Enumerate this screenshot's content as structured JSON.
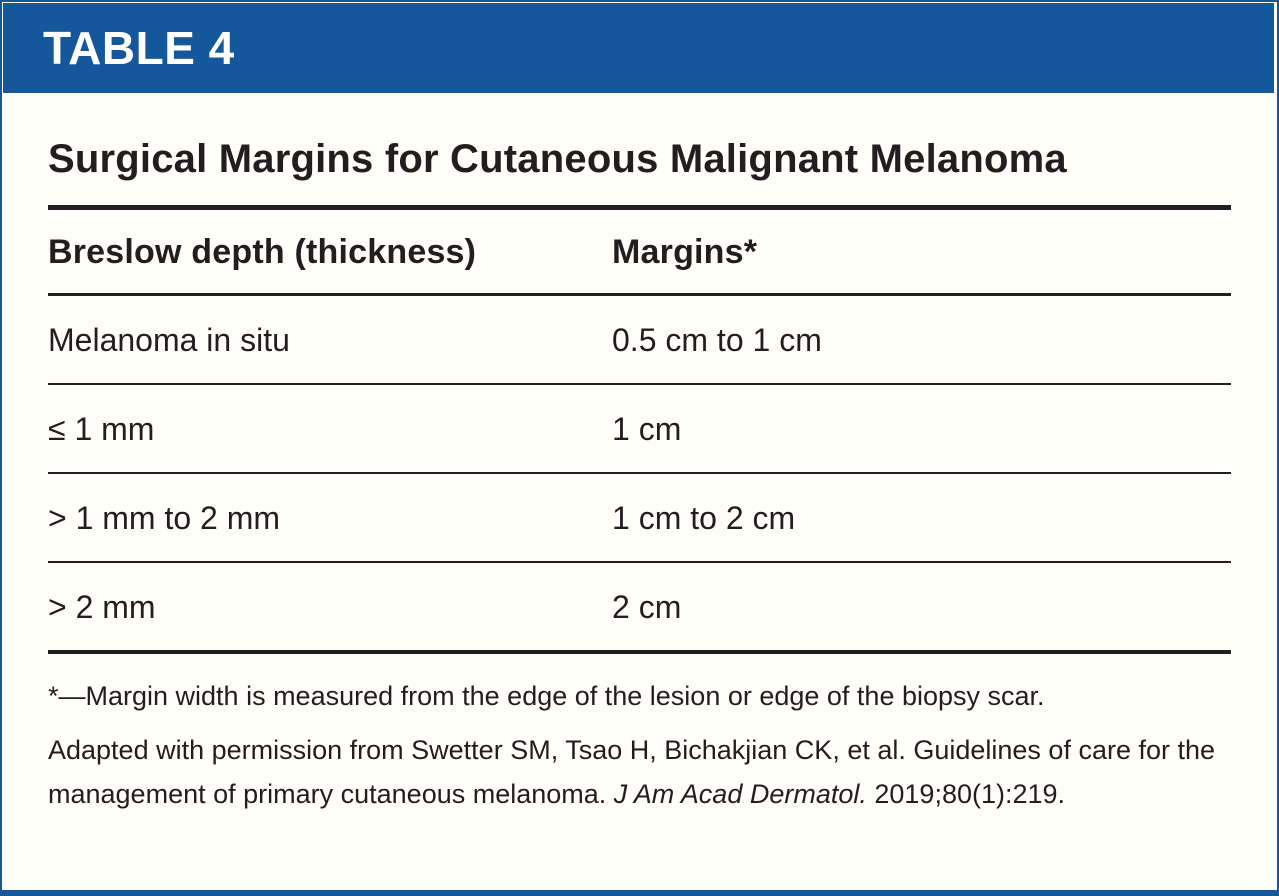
{
  "card": {
    "header_label": "TABLE 4",
    "title": "Surgical Margins for Cutaneous Malignant Melanoma"
  },
  "table": {
    "columns": [
      "Breslow depth (thickness)",
      "Margins*"
    ],
    "rows": [
      {
        "depth": "Melanoma in situ",
        "margin": "0.5 cm to 1 cm"
      },
      {
        "depth": "≤ 1 mm",
        "margin": "1 cm"
      },
      {
        "depth": "> 1 mm to 2 mm",
        "margin": "1 cm to 2 cm"
      },
      {
        "depth": "> 2 mm",
        "margin": "2 cm"
      }
    ]
  },
  "footnotes": {
    "asterisk_note": "*—Margin width is measured from the edge of the lesion or edge of the biopsy scar.",
    "citation_prefix": "Adapted with permission from Swetter SM, Tsao H, Bichakjian CK, et al. Guidelines of care for the management of primary cutaneous melanoma. ",
    "citation_journal_italic": "J Am Acad Dermatol.",
    "citation_suffix": " 2019;80(1):219."
  },
  "colors": {
    "accent_blue": "#15579b",
    "text_black": "#221e20",
    "background_cream": "#fffef8"
  }
}
